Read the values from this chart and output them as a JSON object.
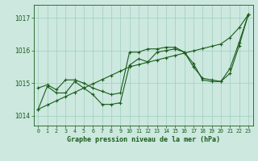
{
  "bg_color": "#cce8df",
  "grid_color": "#9ecfbf",
  "line_color": "#1a5c1a",
  "xlabel": "Graphe pression niveau de la mer (hPa)",
  "xlim": [
    -0.5,
    23.5
  ],
  "ylim": [
    1013.7,
    1017.4
  ],
  "yticks": [
    1014,
    1015,
    1016,
    1017
  ],
  "xticks": [
    0,
    1,
    2,
    3,
    4,
    5,
    6,
    7,
    8,
    9,
    10,
    11,
    12,
    13,
    14,
    15,
    16,
    17,
    18,
    19,
    20,
    21,
    22,
    23
  ],
  "line_straight_x": [
    0,
    1,
    2,
    3,
    4,
    5,
    6,
    7,
    8,
    9,
    10,
    11,
    12,
    13,
    14,
    15,
    16,
    17,
    18,
    19,
    20,
    21,
    22,
    23
  ],
  "line_straight_y": [
    1014.2,
    1014.33,
    1014.46,
    1014.59,
    1014.72,
    1014.85,
    1014.98,
    1015.11,
    1015.24,
    1015.37,
    1015.5,
    1015.57,
    1015.64,
    1015.71,
    1015.78,
    1015.85,
    1015.92,
    1015.99,
    1016.06,
    1016.13,
    1016.2,
    1016.4,
    1016.7,
    1017.1
  ],
  "line_top_x": [
    0,
    1,
    2,
    3,
    4,
    5,
    6,
    7,
    8,
    9,
    10,
    11,
    12,
    13,
    14,
    15,
    16,
    17,
    18,
    19,
    20,
    21,
    22,
    23
  ],
  "line_top_y": [
    1014.85,
    1014.95,
    1014.8,
    1015.1,
    1015.1,
    1015.0,
    1014.85,
    1014.75,
    1014.65,
    1014.7,
    1015.95,
    1015.95,
    1016.05,
    1016.05,
    1016.1,
    1016.1,
    1015.95,
    1015.5,
    1015.15,
    1015.1,
    1015.05,
    1015.45,
    1016.25,
    1017.1
  ],
  "line_bot_x": [
    0,
    1,
    2,
    3,
    4,
    5,
    6,
    7,
    8,
    9,
    10,
    11,
    12,
    13,
    14,
    15,
    16,
    17,
    18,
    19,
    20,
    21,
    22,
    23
  ],
  "line_bot_y": [
    1014.2,
    1014.9,
    1014.7,
    1014.7,
    1015.05,
    1014.85,
    1014.65,
    1014.35,
    1014.35,
    1014.4,
    1015.55,
    1015.75,
    1015.65,
    1015.95,
    1016.0,
    1016.05,
    1015.95,
    1015.6,
    1015.1,
    1015.05,
    1015.05,
    1015.3,
    1016.15,
    1017.1
  ]
}
